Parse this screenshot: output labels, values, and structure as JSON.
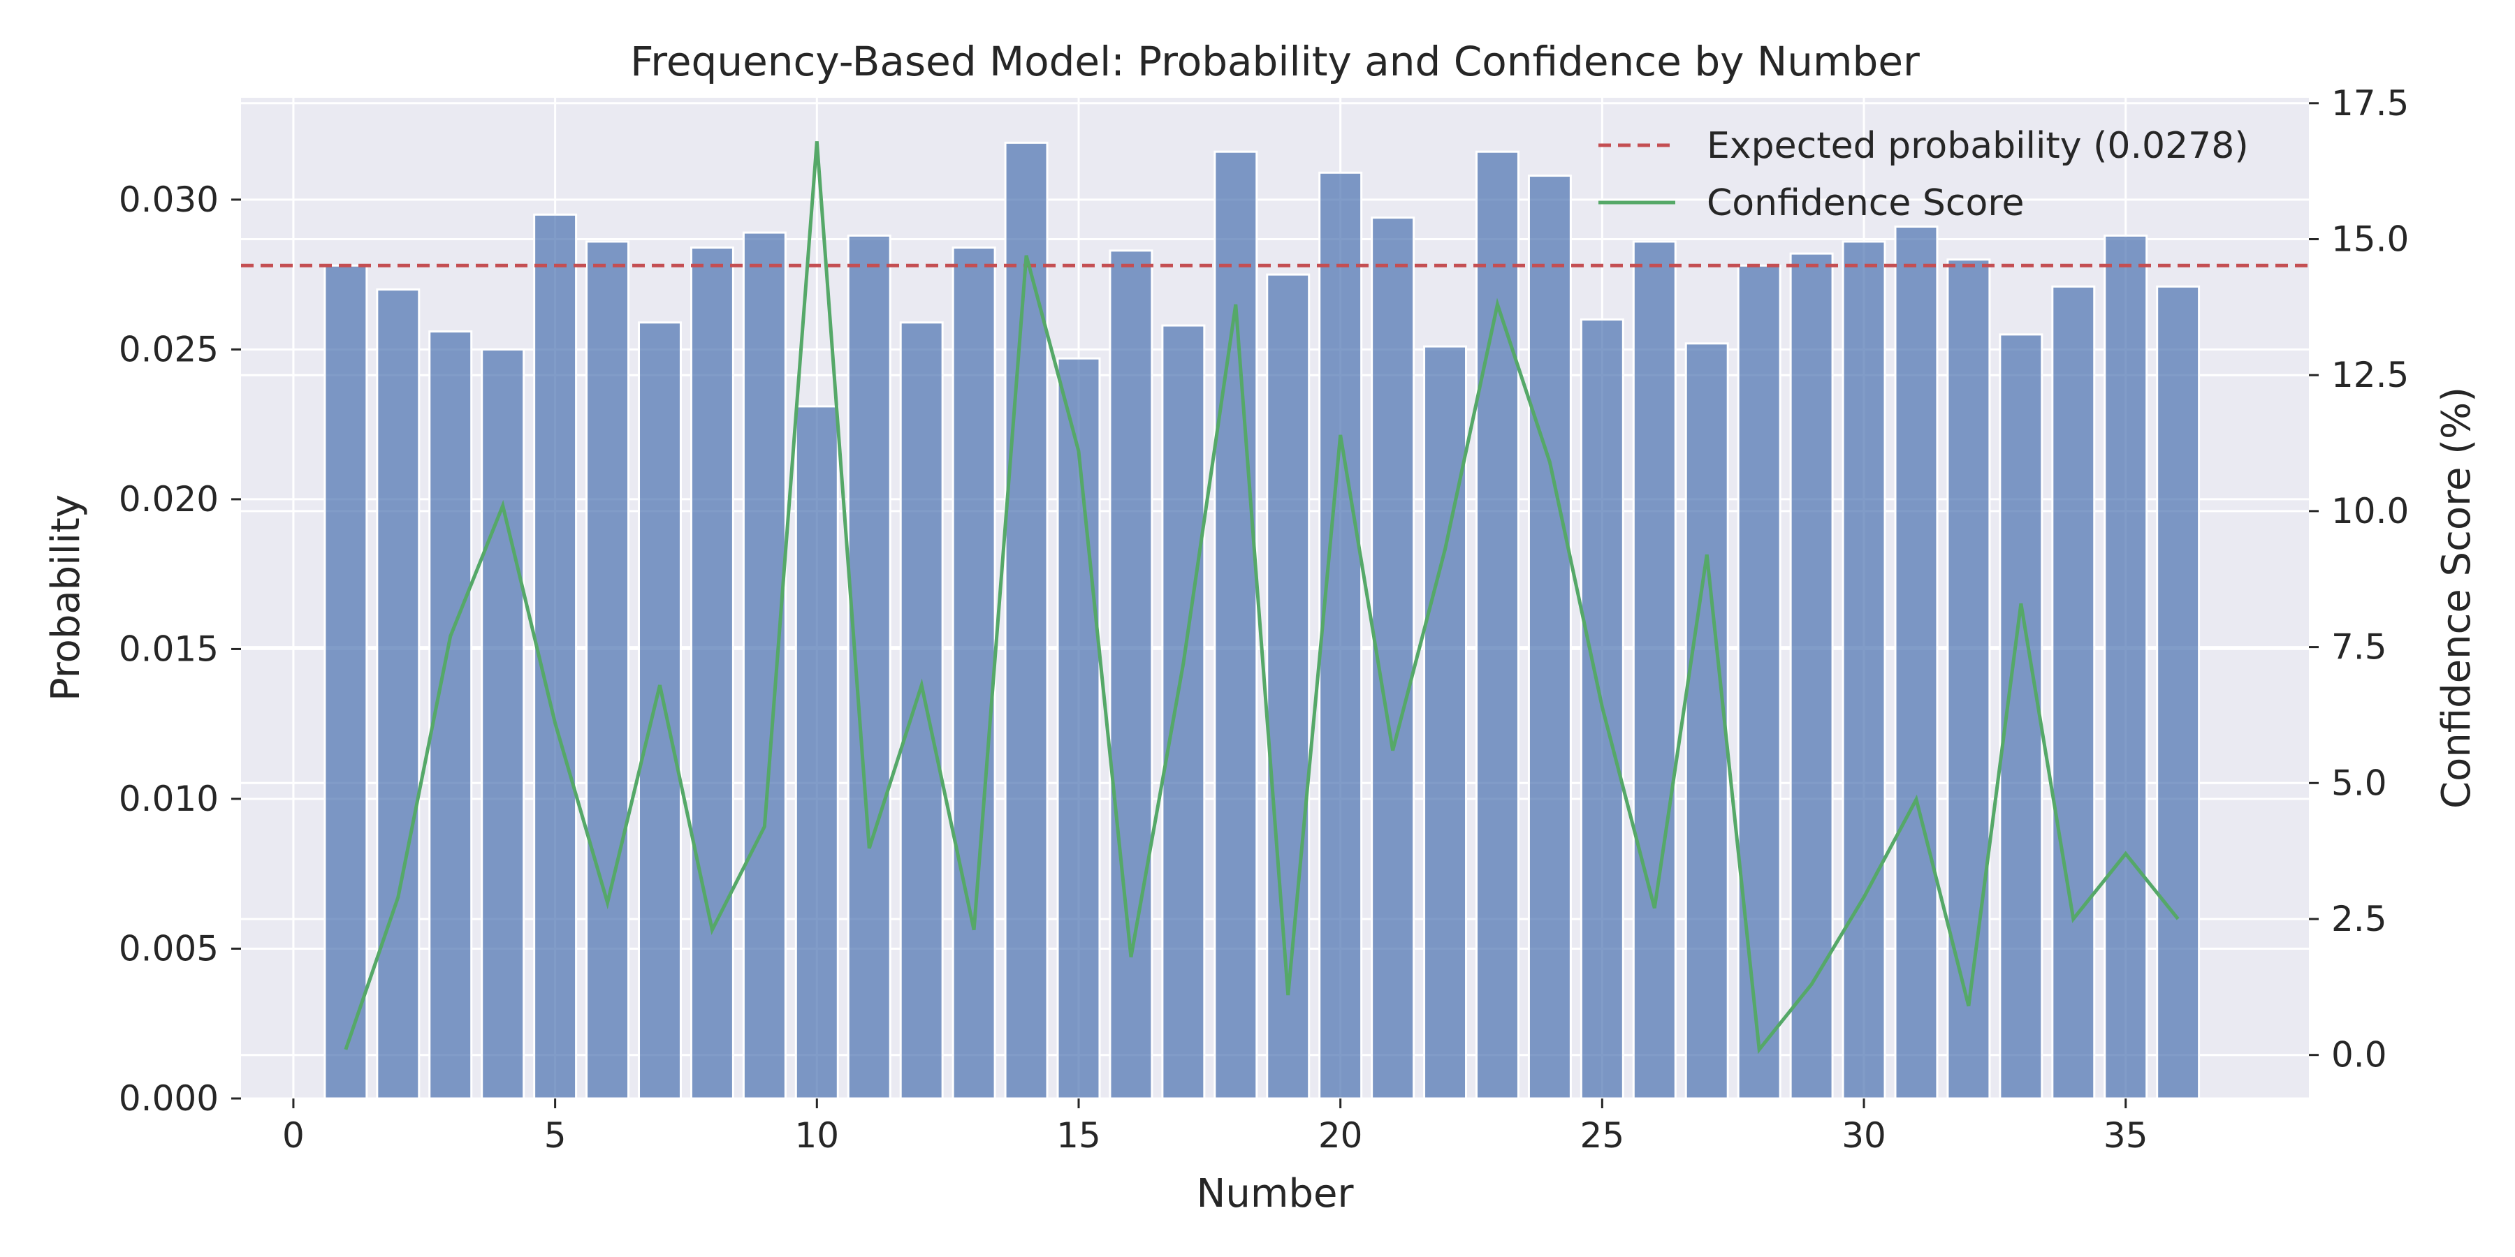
{
  "chart_data": {
    "type": "bar",
    "title": "Frequency-Based Model: Probability and Confidence by Number",
    "xlabel": "Number",
    "ylabel": "Probability",
    "y2label": "Confidence Score (%)",
    "xlim": [
      -1,
      38.5
    ],
    "ylim": [
      0,
      0.0334
    ],
    "y2lim": [
      -0.8,
      17.6
    ],
    "xticks": [
      0,
      5,
      10,
      15,
      20,
      25,
      30,
      35
    ],
    "yticks": [
      0.0,
      0.005,
      0.01,
      0.015,
      0.02,
      0.025,
      0.03
    ],
    "ytick_labels": [
      "0.000",
      "0.005",
      "0.010",
      "0.015",
      "0.020",
      "0.025",
      "0.030"
    ],
    "y2ticks": [
      0.0,
      2.5,
      5.0,
      7.5,
      10.0,
      12.5,
      15.0,
      17.5
    ],
    "y2tick_labels": [
      "0.0",
      "2.5",
      "5.0",
      "7.5",
      "10.0",
      "12.5",
      "15.0",
      "17.5"
    ],
    "grid": true,
    "legend_position": "top-right",
    "x": [
      1,
      2,
      3,
      4,
      5,
      6,
      7,
      8,
      9,
      10,
      11,
      12,
      13,
      14,
      15,
      16,
      17,
      18,
      19,
      20,
      21,
      22,
      23,
      24,
      25,
      26,
      27,
      28,
      29,
      30,
      31,
      32,
      33,
      34,
      35,
      36
    ],
    "series": [
      {
        "type": "bar",
        "axis": "left",
        "values": [
          0.0278,
          0.027,
          0.0256,
          0.025,
          0.0295,
          0.0286,
          0.0259,
          0.0284,
          0.0289,
          0.0231,
          0.0288,
          0.0259,
          0.0284,
          0.0319,
          0.0247,
          0.0283,
          0.0258,
          0.0316,
          0.0275,
          0.0309,
          0.0294,
          0.0251,
          0.0316,
          0.0308,
          0.026,
          0.0286,
          0.0252,
          0.0278,
          0.0282,
          0.0286,
          0.0291,
          0.028,
          0.0255,
          0.0271,
          0.0288,
          0.0271
        ]
      },
      {
        "type": "line",
        "axis": "right",
        "name": "Confidence Score",
        "values": [
          0.1,
          2.9,
          7.7,
          10.1,
          6.1,
          2.8,
          6.8,
          2.3,
          4.2,
          16.8,
          3.8,
          6.8,
          2.3,
          14.7,
          11.1,
          1.8,
          7.2,
          13.8,
          1.1,
          11.4,
          5.6,
          9.3,
          13.8,
          10.9,
          6.4,
          2.7,
          9.2,
          0.1,
          1.3,
          2.9,
          4.7,
          0.9,
          8.3,
          2.5,
          3.7,
          2.5
        ]
      }
    ],
    "reference_line": {
      "name": "Expected probability (0.0278)",
      "value": 0.0278,
      "axis": "left"
    },
    "colors": {
      "bar": "#4c72b0",
      "line": "#55a868",
      "reference": "#c44e52",
      "plot_bg": "#eaeaf2",
      "grid": "#ffffff"
    }
  }
}
